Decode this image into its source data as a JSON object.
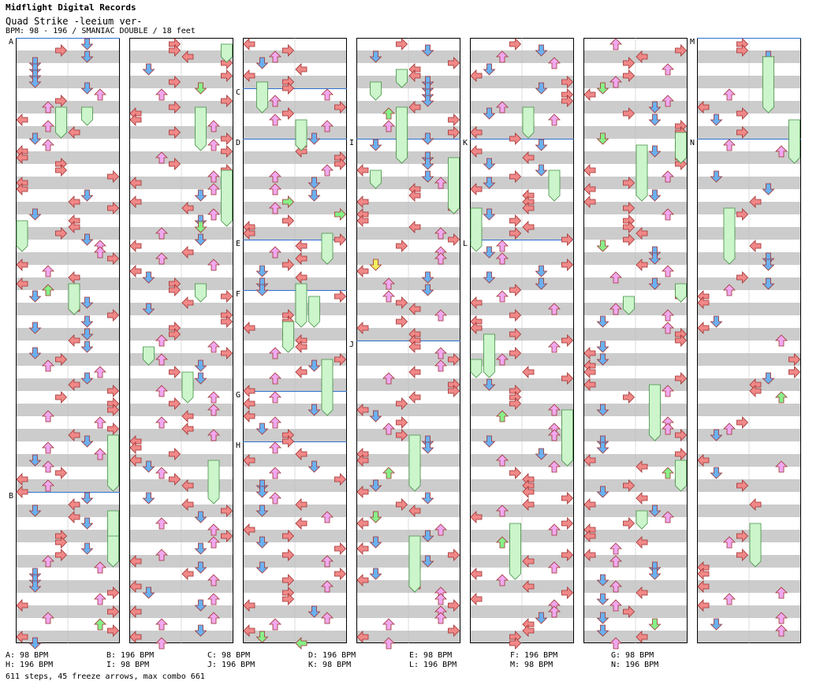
{
  "header": {
    "label": "Midflight Digital Records",
    "song": "Quad Strike -leeium ver-",
    "info": "BPM: 98 - 196 / SMANIAC DOUBLE / 18 feet"
  },
  "colors": {
    "left": "#f08888",
    "down": "#6ab0f0",
    "up": "#f0a8f0",
    "right": "#f08888",
    "beat_up": "#88f088",
    "beat_down": "#f0f060",
    "freeze": "#ccf5cc",
    "stripe": "#cccccc",
    "bpm_line": "#3070d0"
  },
  "chart_data": {
    "type": "step-chart",
    "mode": "SMANIAC DOUBLE",
    "feet": 18,
    "bpm_range": [
      98,
      196
    ],
    "panels": 7,
    "measures_per_panel": 12,
    "section_markers": [
      {
        "label": "A",
        "panel": 0,
        "measure": 0
      },
      {
        "label": "B",
        "panel": 0,
        "measure": 9
      },
      {
        "label": "C",
        "panel": 2,
        "measure": 1
      },
      {
        "label": "D",
        "panel": 2,
        "measure": 2
      },
      {
        "label": "E",
        "panel": 2,
        "measure": 4
      },
      {
        "label": "F",
        "panel": 2,
        "measure": 5
      },
      {
        "label": "G",
        "panel": 2,
        "measure": 7
      },
      {
        "label": "H",
        "panel": 2,
        "measure": 8
      },
      {
        "label": "I",
        "panel": 3,
        "measure": 2
      },
      {
        "label": "J",
        "panel": 3,
        "measure": 6
      },
      {
        "label": "K",
        "panel": 4,
        "measure": 2
      },
      {
        "label": "L",
        "panel": 4,
        "measure": 4
      },
      {
        "label": "M",
        "panel": 6,
        "measure": 0
      },
      {
        "label": "N",
        "panel": 6,
        "measure": 2
      }
    ],
    "bpm_changes": [
      {
        "label": "A",
        "bpm": "98 BPM"
      },
      {
        "label": "B",
        "bpm": "196 BPM"
      },
      {
        "label": "C",
        "bpm": "98 BPM"
      },
      {
        "label": "D",
        "bpm": "196 BPM"
      },
      {
        "label": "E",
        "bpm": "98 BPM"
      },
      {
        "label": "F",
        "bpm": "196 BPM"
      },
      {
        "label": "G",
        "bpm": "98 BPM"
      },
      {
        "label": "H",
        "bpm": "196 BPM"
      },
      {
        "label": "I",
        "bpm": "98 BPM"
      },
      {
        "label": "J",
        "bpm": "196 BPM"
      },
      {
        "label": "K",
        "bpm": "98 BPM"
      },
      {
        "label": "L",
        "bpm": "196 BPM"
      },
      {
        "label": "M",
        "bpm": "98 BPM"
      },
      {
        "label": "N",
        "bpm": "196 BPM"
      }
    ],
    "steps": 611,
    "freeze_arrows": 45,
    "max_combo": 661
  },
  "footer": {
    "bpm_list": [
      "A: 98 BPM",
      "B: 196 BPM",
      "C: 98 BPM",
      "D: 196 BPM",
      "E: 98 BPM",
      "F: 196 BPM",
      "G: 98 BPM",
      "H: 196 BPM",
      "I: 98 BPM",
      "J: 196 BPM",
      "K: 98 BPM",
      "L: 196 BPM",
      "M: 98 BPM",
      "N: 196 BPM"
    ],
    "summary": "611 steps, 45 freeze arrows, max combo 661"
  }
}
